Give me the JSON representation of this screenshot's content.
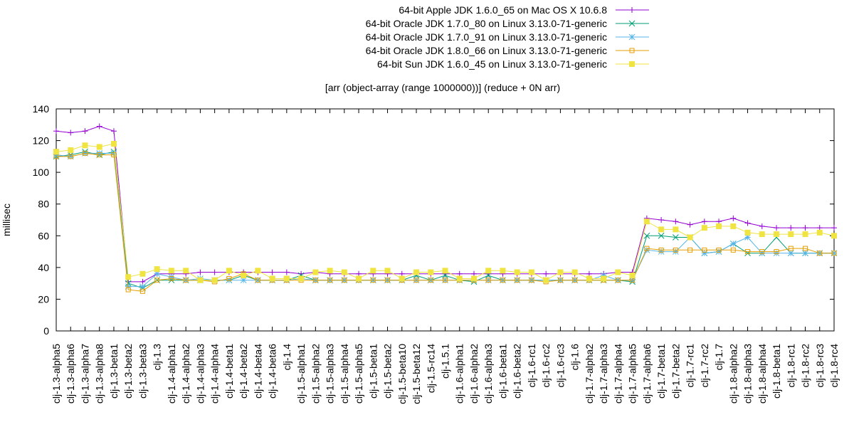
{
  "chart_data": {
    "type": "line",
    "title": "[arr (object-array (range 1000000))] (reduce + 0N arr)",
    "ylabel": "millisec",
    "xlabel": "",
    "ylim": [
      0,
      140
    ],
    "yticks": [
      0,
      20,
      40,
      60,
      80,
      100,
      120,
      140
    ],
    "legend_position": "top-right",
    "grid": false,
    "categories": [
      "clj-1.3-alpha5",
      "clj-1.3-alpha6",
      "clj-1.3-alpha7",
      "clj-1.3-alpha8",
      "clj-1.3-beta1",
      "clj-1.3-beta2",
      "clj-1.3-beta3",
      "clj-1.3",
      "clj-1.4-alpha1",
      "clj-1.4-alpha2",
      "clj-1.4-alpha3",
      "clj-1.4-alpha4",
      "clj-1.4-beta1",
      "clj-1.4-beta2",
      "clj-1.4-beta4",
      "clj-1.4-beta6",
      "clj-1.4",
      "clj-1.5-alpha1",
      "clj-1.5-alpha2",
      "clj-1.5-alpha3",
      "clj-1.5-alpha4",
      "clj-1.5-alpha5",
      "clj-1.5-beta1",
      "clj-1.5-beta2",
      "clj-1.5-beta10",
      "clj-1.5-beta12",
      "clj-1.5-rc14",
      "clj-1.5.1",
      "clj-1.6-alpha1",
      "clj-1.6-alpha2",
      "clj-1.6-alpha3",
      "clj-1.6-beta1",
      "clj-1.6-beta2",
      "clj-1.6-rc1",
      "clj-1.6-rc2",
      "clj-1.6-rc3",
      "clj-1.6",
      "clj-1.7-alpha2",
      "clj-1.7-alpha3",
      "clj-1.7-alpha4",
      "clj-1.7-alpha5",
      "clj-1.7-alpha6",
      "clj-1.7-beta1",
      "clj-1.7-beta2",
      "clj-1.7-rc1",
      "clj-1.7-rc2",
      "clj-1.7",
      "clj-1.8-alpha2",
      "clj-1.8-alpha3",
      "clj-1.8-alpha4",
      "clj-1.8-beta1",
      "clj-1.8-rc1",
      "clj-1.8-rc2",
      "clj-1.8-rc3",
      "clj-1.8-rc4"
    ],
    "series": [
      {
        "name": "64-bit Apple JDK 1.6.0_65 on Mac OS X 10.6.8",
        "color": "#9400d3",
        "marker": "plus",
        "values": [
          126,
          125,
          126,
          129,
          126,
          31,
          31,
          36,
          36,
          36,
          37,
          37,
          37,
          37,
          37,
          37,
          37,
          36,
          37,
          36,
          36,
          36,
          36,
          36,
          36,
          36,
          36,
          36,
          36,
          36,
          36,
          36,
          36,
          36,
          36,
          36,
          36,
          36,
          36,
          37,
          37,
          71,
          70,
          69,
          67,
          69,
          69,
          71,
          68,
          66,
          65,
          65,
          65,
          65,
          65
        ]
      },
      {
        "name": "64-bit Oracle JDK 1.7.0_80 on Linux 3.13.0-71-generic",
        "color": "#009e73",
        "marker": "x",
        "values": [
          110,
          111,
          113,
          111,
          113,
          30,
          27,
          32,
          32,
          32,
          32,
          32,
          32,
          35,
          32,
          32,
          32,
          35,
          32,
          32,
          32,
          32,
          32,
          32,
          32,
          35,
          32,
          35,
          32,
          31,
          35,
          32,
          32,
          32,
          32,
          32,
          32,
          32,
          32,
          32,
          31,
          60,
          60,
          59,
          59,
          49,
          50,
          55,
          49,
          49,
          59,
          49,
          49,
          49,
          49
        ]
      },
      {
        "name": "64-bit Oracle JDK 1.7.0_91 on Linux 3.13.0-71-generic",
        "color": "#56b4e9",
        "marker": "star",
        "values": [
          111,
          110,
          112,
          112,
          112,
          28,
          28,
          36,
          34,
          32,
          33,
          32,
          32,
          32,
          32,
          32,
          32,
          33,
          32,
          32,
          32,
          32,
          32,
          32,
          32,
          32,
          32,
          32,
          32,
          32,
          32,
          32,
          32,
          32,
          32,
          32,
          32,
          32,
          35,
          32,
          32,
          51,
          50,
          50,
          59,
          49,
          50,
          55,
          59,
          49,
          49,
          49,
          49,
          49,
          49
        ]
      },
      {
        "name": "64-bit Oracle JDK 1.8.0_66 on Linux 3.13.0-71-generic",
        "color": "#e69f00",
        "marker": "square",
        "values": [
          110,
          110,
          112,
          111,
          111,
          26,
          25,
          32,
          33,
          32,
          32,
          31,
          33,
          36,
          32,
          32,
          32,
          32,
          32,
          32,
          32,
          32,
          32,
          32,
          32,
          32,
          32,
          32,
          32,
          32,
          32,
          32,
          32,
          32,
          31,
          32,
          32,
          32,
          32,
          32,
          32,
          52,
          51,
          51,
          51,
          51,
          51,
          51,
          50,
          50,
          50,
          52,
          52,
          49,
          49
        ]
      },
      {
        "name": "64-bit Sun JDK 1.6.0_45 on Linux 3.13.0-71-generic",
        "color": "#f0e442",
        "marker": "filled-square",
        "values": [
          113,
          114,
          117,
          116,
          118,
          34,
          36,
          39,
          38,
          38,
          32,
          32,
          38,
          35,
          38,
          33,
          33,
          33,
          37,
          38,
          37,
          33,
          38,
          38,
          33,
          37,
          37,
          38,
          33,
          33,
          38,
          38,
          37,
          37,
          32,
          37,
          37,
          33,
          33,
          37,
          35,
          69,
          64,
          64,
          59,
          65,
          66,
          66,
          62,
          61,
          61,
          61,
          61,
          62,
          60
        ]
      }
    ]
  }
}
